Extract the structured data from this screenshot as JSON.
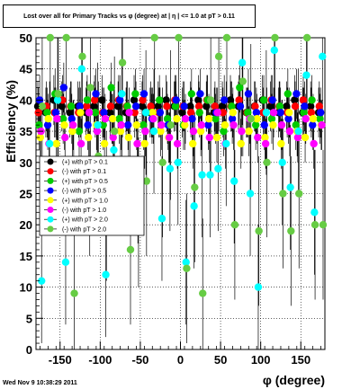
{
  "timestamp": "Wed Nov  9 10:38:29 2011",
  "chart_data": {
    "type": "scatter",
    "title": "Lost over all for Primary Tracks vs φ (degree) at | η | <= 1.0 at pT > 0.11",
    "xlabel": "φ (degree)",
    "ylabel": "Efficiency (%)",
    "xlim": [
      -180,
      180
    ],
    "ylim": [
      0,
      50
    ],
    "xticks": [
      -150,
      -100,
      -50,
      0,
      50,
      100,
      150
    ],
    "xtick_labels": [
      "-150",
      "-100",
      "-50",
      "0",
      "50",
      "100",
      "150"
    ],
    "yticks": [
      0,
      5,
      10,
      15,
      20,
      25,
      30,
      35,
      40,
      45,
      50
    ],
    "ytick_labels": [
      "0",
      "5",
      "10",
      "15",
      "20",
      "25",
      "30",
      "35",
      "40",
      "45",
      "50"
    ],
    "grid": true,
    "legend_position": "middle-left",
    "x": [
      -175,
      -165,
      -155,
      -145,
      -135,
      -125,
      -115,
      -105,
      -95,
      -85,
      -75,
      -65,
      -55,
      -45,
      -35,
      -25,
      -15,
      -5,
      5,
      15,
      25,
      35,
      45,
      55,
      65,
      75,
      85,
      95,
      105,
      115,
      125,
      135,
      145,
      155,
      165,
      175
    ],
    "series": [
      {
        "name": "(+) with pT > 0.1",
        "color": "#000000",
        "values": [
          39,
          38,
          40,
          39,
          38,
          39,
          38,
          39,
          40,
          38,
          39,
          38,
          40,
          39,
          38,
          39,
          40,
          39,
          38,
          39,
          40,
          39,
          38,
          39,
          40,
          39,
          38,
          39,
          40,
          39,
          38,
          39,
          40,
          38,
          39,
          38
        ]
      },
      {
        "name": "(-) with pT > 0.1",
        "color": "#ff0000",
        "values": [
          38,
          39,
          38,
          40,
          39,
          38,
          39,
          40,
          38,
          39,
          40,
          39,
          38,
          40,
          39,
          38,
          39,
          40,
          39,
          38,
          39,
          40,
          39,
          38,
          39,
          40,
          38,
          39,
          38,
          40,
          39,
          38,
          39,
          40,
          38,
          39
        ]
      },
      {
        "name": "(+) with pT > 0.5",
        "color": "#00cc00",
        "values": [
          36,
          38,
          41,
          37,
          39,
          35,
          40,
          38,
          36,
          42,
          37,
          39,
          41,
          36,
          38,
          40,
          37,
          39,
          36,
          41,
          38,
          40,
          37,
          35,
          39,
          42,
          38,
          36,
          40,
          37,
          39,
          41,
          36,
          38,
          40,
          37
        ]
      },
      {
        "name": "(-) with pT > 0.5",
        "color": "#0000ff",
        "values": [
          40,
          36,
          38,
          42,
          37,
          39,
          36,
          41,
          38,
          37,
          40,
          36,
          39,
          41,
          37,
          38,
          36,
          40,
          39,
          37,
          41,
          36,
          38,
          40,
          37,
          39,
          41,
          38,
          36,
          40,
          38,
          37,
          41,
          39,
          36,
          38
        ]
      },
      {
        "name": "(+) with pT > 1.0",
        "color": "#ffff00",
        "values": [
          34,
          37,
          33,
          36,
          35,
          38,
          34,
          36,
          33,
          37,
          35,
          34,
          36,
          33,
          38,
          35,
          34,
          37,
          36,
          33,
          35,
          37,
          34,
          36,
          38,
          33,
          35,
          37,
          34,
          36,
          33,
          38,
          35,
          34,
          37,
          36
        ]
      },
      {
        "name": "(-) with pT > 1.0",
        "color": "#ff00ff",
        "values": [
          35,
          33,
          37,
          34,
          36,
          33,
          38,
          35,
          37,
          34,
          36,
          38,
          33,
          35,
          37,
          36,
          34,
          33,
          37,
          35,
          36,
          34,
          38,
          33,
          36,
          35,
          37,
          34,
          33,
          38,
          36,
          35,
          34,
          37,
          33,
          36
        ]
      },
      {
        "name": "(+) with pT > 2.0",
        "color": "#00ffff",
        "values": [
          11,
          33,
          40,
          14,
          30,
          45,
          25,
          36,
          12,
          32,
          41,
          29,
          27,
          38,
          35,
          21,
          29,
          30,
          14,
          23,
          28,
          28,
          29,
          33,
          27,
          46,
          25,
          10,
          38,
          48,
          30,
          26,
          35,
          44,
          22,
          47
        ]
      },
      {
        "name": "(-) with pT > 2.0",
        "color": "#66cc44",
        "values": [
          39,
          50,
          41,
          50,
          9,
          47,
          42,
          31,
          23,
          35,
          46,
          16,
          22,
          27,
          50,
          30,
          36,
          50,
          13,
          26,
          9,
          40,
          47,
          50,
          20,
          43,
          37,
          19,
          30,
          50,
          25,
          19,
          25,
          50,
          20,
          20
        ]
      }
    ]
  }
}
